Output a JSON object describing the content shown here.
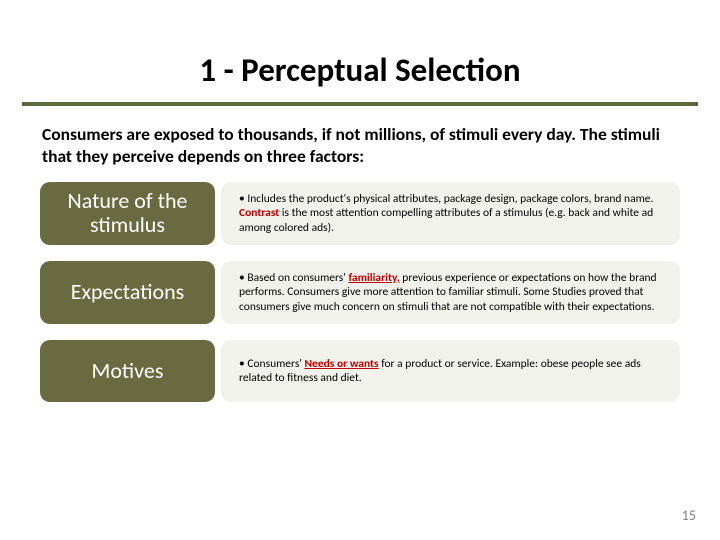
{
  "title": "1 - Perceptual Selection",
  "intro": "Consumers are exposed to thousands, if not millions,  of stimuli every day.  The stimuli that they perceive depends on three factors:",
  "rows": [
    {
      "label": "Nature of the stimulus",
      "desc_html": "• Includes the product's physical attributes, package design, package colors, brand name. <span class='hl'>Contrast</span> is the most attention compelling attributes of a stimulus (e.g. back and white ad among colored ads)."
    },
    {
      "label": "Expectations",
      "desc_html": "• Based on consumers' <span class='hl u'>familiarity,</span> previous experience or expectations on how the brand performs. Consumers give more attention to familiar stimuli. Some Studies proved that consumers give much concern on stimuli that are not compatible with their expectations."
    },
    {
      "label": "Motives",
      "desc_html": "• Consumers' <span class='hl u'>Needs or wants</span> for a product or service. Example: obese people see ads related to fitness and diet."
    }
  ],
  "page_number": "15",
  "colors": {
    "rule": "#5a6a3a",
    "label_bg": "#6a6a40",
    "desc_bg": "#f2f2ec",
    "highlight": "#c00000",
    "pagenum": "#7f7f7f"
  }
}
